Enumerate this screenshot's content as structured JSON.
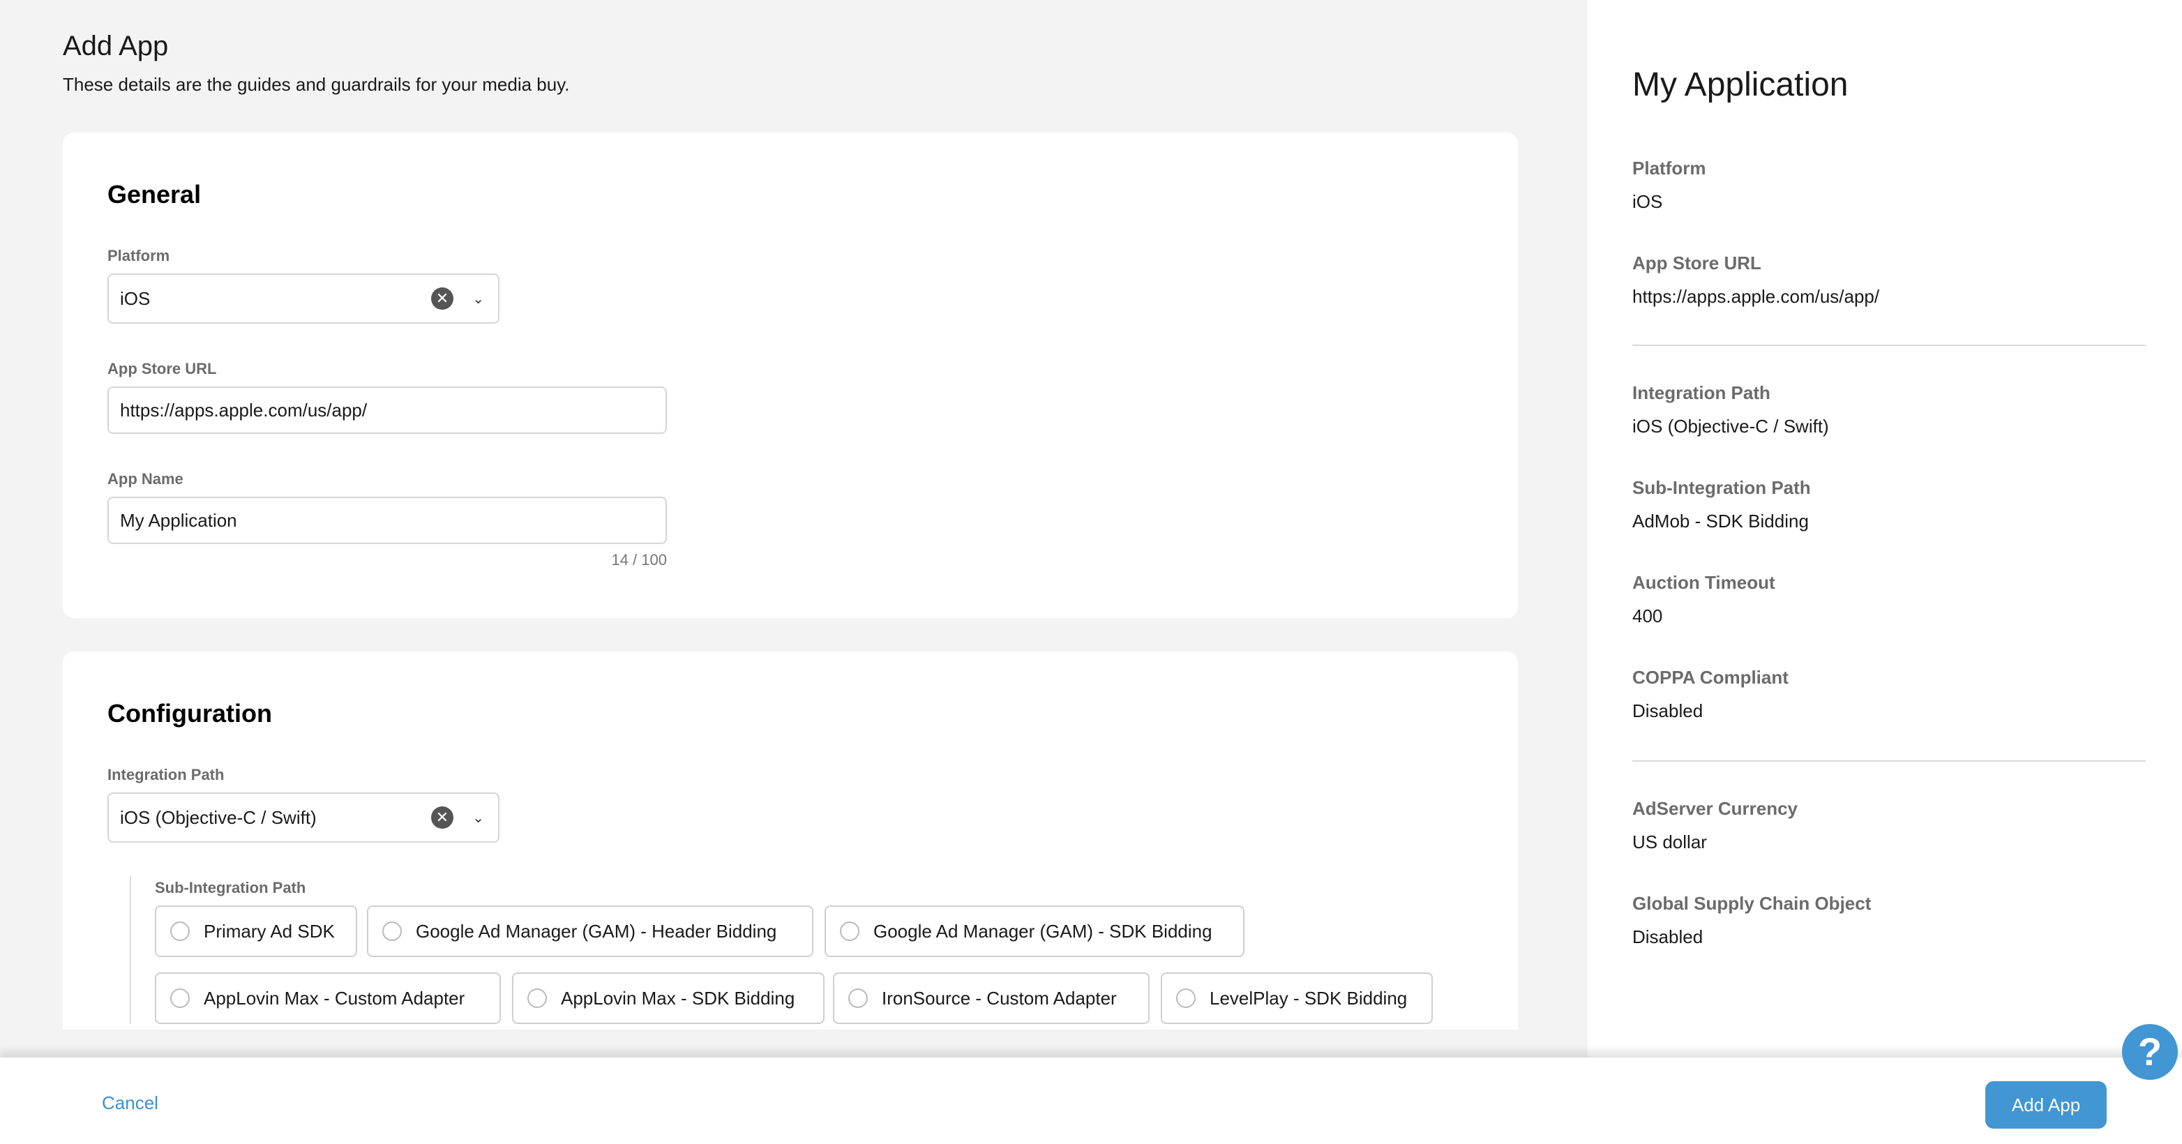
{
  "header": {
    "title": "Add App",
    "subtitle": "These details are the guides and guardrails for your media buy."
  },
  "general": {
    "title": "General",
    "platform_label": "Platform",
    "platform_value": "iOS",
    "url_label": "App Store URL",
    "url_value": "https://apps.apple.com/us/app/",
    "name_label": "App Name",
    "name_value": "My Application",
    "name_counter": "14 / 100"
  },
  "config": {
    "title": "Configuration",
    "integration_label": "Integration Path",
    "integration_value": "iOS (Objective-C / Swift)",
    "sub_label": "Sub-Integration Path",
    "options": [
      "Primary Ad SDK",
      "Google Ad Manager (GAM) - Header Bidding",
      "Google Ad Manager (GAM) - SDK Bidding",
      "AppLovin Max - Custom Adapter",
      "AppLovin Max - SDK Bidding",
      "IronSource - Custom Adapter",
      "LevelPlay - SDK Bidding"
    ]
  },
  "summary": {
    "title": "My Application",
    "items": [
      {
        "label": "Platform",
        "value": "iOS"
      },
      {
        "label": "App Store URL",
        "value": "https://apps.apple.com/us/app/"
      },
      {
        "label": "Integration Path",
        "value": "iOS (Objective-C / Swift)"
      },
      {
        "label": "Sub-Integration Path",
        "value": "AdMob - SDK Bidding"
      },
      {
        "label": "Auction Timeout",
        "value": "400"
      },
      {
        "label": "COPPA Compliant",
        "value": "Disabled"
      },
      {
        "label": "AdServer Currency",
        "value": "US dollar"
      },
      {
        "label": "Global Supply Chain Object",
        "value": "Disabled"
      }
    ]
  },
  "footer": {
    "cancel": "Cancel",
    "submit": "Add App",
    "help": "?"
  },
  "colors": {
    "accent": "#4196d3",
    "link": "#3d8fd1"
  }
}
